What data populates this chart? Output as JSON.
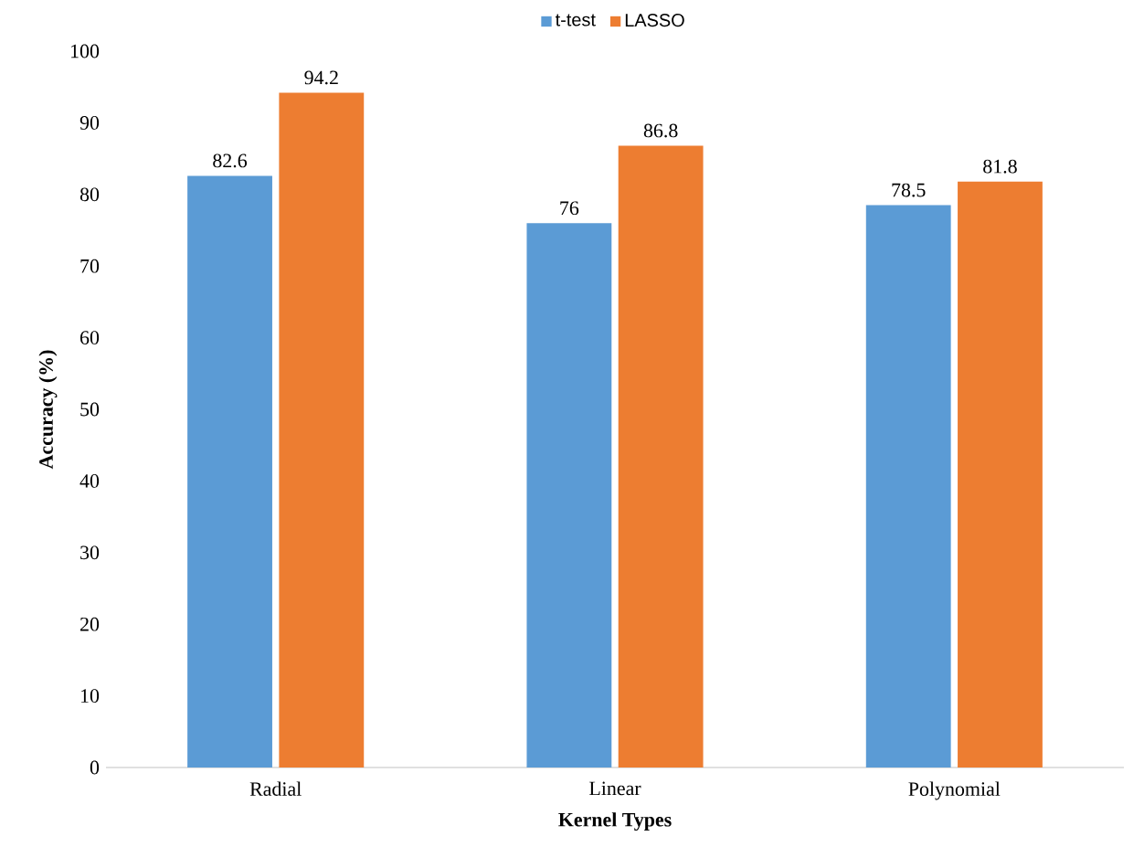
{
  "chart_data": {
    "type": "bar",
    "xlabel": "Kernel Types",
    "ylabel": "Accuracy (%)",
    "categories": [
      "Radial",
      "Linear",
      "Polynomial"
    ],
    "series": [
      {
        "name": "t-test",
        "color": "#5b9bd5",
        "values": [
          82.6,
          76,
          78.5
        ]
      },
      {
        "name": "LASSO",
        "color": "#ed7d31",
        "values": [
          94.2,
          86.8,
          81.8
        ]
      }
    ],
    "ylim": [
      0,
      100
    ],
    "yticks": [
      0,
      10,
      20,
      30,
      40,
      50,
      60,
      70,
      80,
      90,
      100
    ],
    "grid": false,
    "legend": "top",
    "data_labels": true
  }
}
